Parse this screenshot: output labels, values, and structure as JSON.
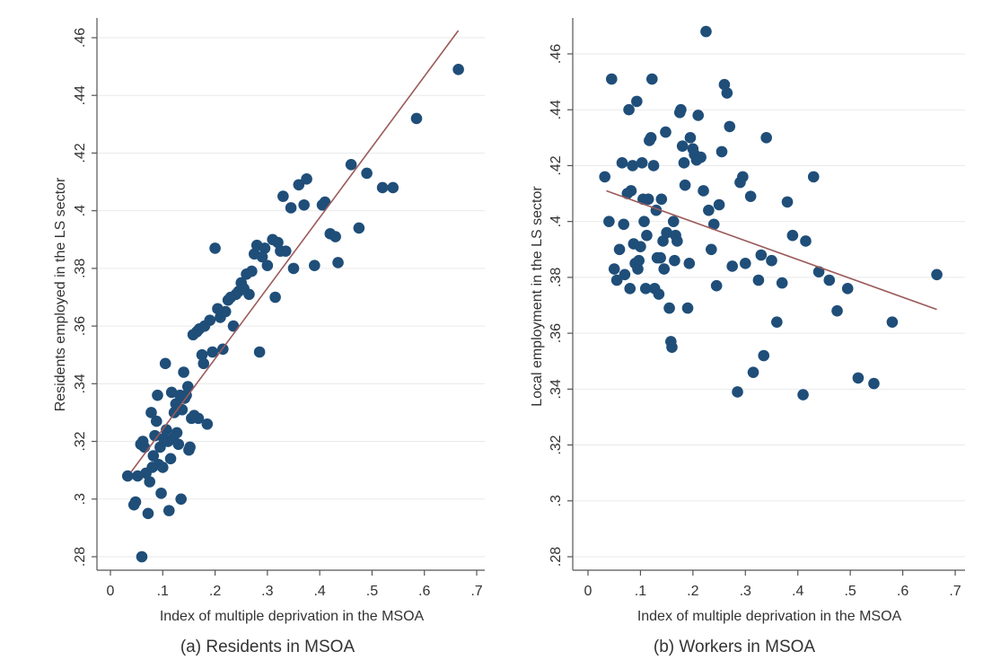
{
  "chart_data": [
    {
      "type": "scatter",
      "caption": "(a) Residents in MSOA",
      "xlabel": "Index of multiple deprivation in the MSOA",
      "ylabel": "Residents employed in the LS sector",
      "xlim": [
        0,
        0.7
      ],
      "ylim": [
        0.28,
        0.46
      ],
      "x_ticks": [
        "0",
        ".1",
        ".2",
        ".3",
        ".4",
        ".5",
        ".6",
        ".7"
      ],
      "y_ticks": [
        ".28",
        ".3",
        ".32",
        ".34",
        ".36",
        ".38",
        ".4",
        ".42",
        ".44",
        ".46"
      ],
      "grid": true,
      "marker_color": "#1f4e79",
      "fit_color": "#9b5a5a",
      "fit_line": {
        "x": [
          0.04,
          0.665
        ],
        "y": [
          0.3095,
          0.4625
        ]
      },
      "points": [
        [
          0.033,
          0.308
        ],
        [
          0.045,
          0.298
        ],
        [
          0.048,
          0.299
        ],
        [
          0.052,
          0.308
        ],
        [
          0.058,
          0.319
        ],
        [
          0.062,
          0.32
        ],
        [
          0.065,
          0.318
        ],
        [
          0.06,
          0.28
        ],
        [
          0.068,
          0.309
        ],
        [
          0.072,
          0.295
        ],
        [
          0.075,
          0.306
        ],
        [
          0.078,
          0.33
        ],
        [
          0.08,
          0.311
        ],
        [
          0.082,
          0.315
        ],
        [
          0.085,
          0.322
        ],
        [
          0.088,
          0.327
        ],
        [
          0.09,
          0.336
        ],
        [
          0.092,
          0.312
        ],
        [
          0.095,
          0.318
        ],
        [
          0.097,
          0.302
        ],
        [
          0.1,
          0.311
        ],
        [
          0.102,
          0.321
        ],
        [
          0.105,
          0.347
        ],
        [
          0.107,
          0.324
        ],
        [
          0.11,
          0.32
        ],
        [
          0.112,
          0.296
        ],
        [
          0.115,
          0.314
        ],
        [
          0.117,
          0.337
        ],
        [
          0.12,
          0.321
        ],
        [
          0.122,
          0.33
        ],
        [
          0.125,
          0.333
        ],
        [
          0.127,
          0.323
        ],
        [
          0.13,
          0.319
        ],
        [
          0.133,
          0.336
        ],
        [
          0.135,
          0.3
        ],
        [
          0.137,
          0.331
        ],
        [
          0.14,
          0.344
        ],
        [
          0.142,
          0.335
        ],
        [
          0.145,
          0.336
        ],
        [
          0.148,
          0.339
        ],
        [
          0.15,
          0.317
        ],
        [
          0.152,
          0.318
        ],
        [
          0.155,
          0.328
        ],
        [
          0.158,
          0.357
        ],
        [
          0.16,
          0.329
        ],
        [
          0.165,
          0.358
        ],
        [
          0.168,
          0.328
        ],
        [
          0.17,
          0.359
        ],
        [
          0.175,
          0.35
        ],
        [
          0.178,
          0.347
        ],
        [
          0.18,
          0.36
        ],
        [
          0.185,
          0.326
        ],
        [
          0.19,
          0.362
        ],
        [
          0.195,
          0.351
        ],
        [
          0.2,
          0.387
        ],
        [
          0.205,
          0.366
        ],
        [
          0.21,
          0.363
        ],
        [
          0.215,
          0.352
        ],
        [
          0.22,
          0.365
        ],
        [
          0.225,
          0.369
        ],
        [
          0.23,
          0.37
        ],
        [
          0.235,
          0.36
        ],
        [
          0.24,
          0.371
        ],
        [
          0.245,
          0.372
        ],
        [
          0.25,
          0.375
        ],
        [
          0.255,
          0.373
        ],
        [
          0.26,
          0.378
        ],
        [
          0.265,
          0.371
        ],
        [
          0.27,
          0.379
        ],
        [
          0.275,
          0.385
        ],
        [
          0.28,
          0.388
        ],
        [
          0.285,
          0.351
        ],
        [
          0.29,
          0.384
        ],
        [
          0.295,
          0.387
        ],
        [
          0.3,
          0.381
        ],
        [
          0.31,
          0.39
        ],
        [
          0.315,
          0.37
        ],
        [
          0.32,
          0.389
        ],
        [
          0.325,
          0.386
        ],
        [
          0.33,
          0.405
        ],
        [
          0.335,
          0.386
        ],
        [
          0.345,
          0.401
        ],
        [
          0.35,
          0.38
        ],
        [
          0.36,
          0.409
        ],
        [
          0.37,
          0.402
        ],
        [
          0.375,
          0.411
        ],
        [
          0.39,
          0.381
        ],
        [
          0.405,
          0.402
        ],
        [
          0.41,
          0.403
        ],
        [
          0.42,
          0.392
        ],
        [
          0.43,
          0.391
        ],
        [
          0.435,
          0.382
        ],
        [
          0.46,
          0.416
        ],
        [
          0.475,
          0.394
        ],
        [
          0.49,
          0.413
        ],
        [
          0.52,
          0.408
        ],
        [
          0.54,
          0.408
        ],
        [
          0.585,
          0.432
        ],
        [
          0.665,
          0.449
        ]
      ]
    },
    {
      "type": "scatter",
      "caption": "(b) Workers in MSOA",
      "xlabel": "Index of multiple deprivation in the MSOA",
      "ylabel": "Local employment in the LS sector",
      "xlim": [
        0,
        0.7
      ],
      "ylim": [
        0.28,
        0.46
      ],
      "x_ticks": [
        "0",
        ".1",
        ".2",
        ".3",
        ".4",
        ".5",
        ".6",
        ".7"
      ],
      "y_ticks": [
        ".28",
        ".3",
        ".32",
        ".34",
        ".36",
        ".38",
        ".4",
        ".42",
        ".44",
        ".46"
      ],
      "grid": true,
      "marker_color": "#1f4e79",
      "fit_color": "#9b5a5a",
      "fit_line": {
        "x": [
          0.035,
          0.665
        ],
        "y": [
          0.411,
          0.3685
        ]
      },
      "points": [
        [
          0.032,
          0.416
        ],
        [
          0.04,
          0.4
        ],
        [
          0.045,
          0.451
        ],
        [
          0.05,
          0.383
        ],
        [
          0.055,
          0.379
        ],
        [
          0.06,
          0.39
        ],
        [
          0.065,
          0.421
        ],
        [
          0.068,
          0.399
        ],
        [
          0.07,
          0.381
        ],
        [
          0.075,
          0.41
        ],
        [
          0.078,
          0.44
        ],
        [
          0.08,
          0.376
        ],
        [
          0.082,
          0.411
        ],
        [
          0.085,
          0.42
        ],
        [
          0.087,
          0.392
        ],
        [
          0.09,
          0.385
        ],
        [
          0.093,
          0.443
        ],
        [
          0.095,
          0.383
        ],
        [
          0.097,
          0.386
        ],
        [
          0.1,
          0.391
        ],
        [
          0.103,
          0.421
        ],
        [
          0.105,
          0.408
        ],
        [
          0.107,
          0.4
        ],
        [
          0.11,
          0.376
        ],
        [
          0.112,
          0.395
        ],
        [
          0.115,
          0.408
        ],
        [
          0.117,
          0.429
        ],
        [
          0.12,
          0.43
        ],
        [
          0.122,
          0.451
        ],
        [
          0.125,
          0.42
        ],
        [
          0.127,
          0.376
        ],
        [
          0.13,
          0.404
        ],
        [
          0.132,
          0.387
        ],
        [
          0.135,
          0.374
        ],
        [
          0.138,
          0.387
        ],
        [
          0.14,
          0.408
        ],
        [
          0.143,
          0.393
        ],
        [
          0.145,
          0.383
        ],
        [
          0.148,
          0.432
        ],
        [
          0.15,
          0.396
        ],
        [
          0.155,
          0.369
        ],
        [
          0.158,
          0.357
        ],
        [
          0.16,
          0.355
        ],
        [
          0.163,
          0.4
        ],
        [
          0.165,
          0.386
        ],
        [
          0.167,
          0.395
        ],
        [
          0.17,
          0.393
        ],
        [
          0.175,
          0.439
        ],
        [
          0.177,
          0.44
        ],
        [
          0.18,
          0.427
        ],
        [
          0.183,
          0.421
        ],
        [
          0.185,
          0.413
        ],
        [
          0.19,
          0.369
        ],
        [
          0.193,
          0.385
        ],
        [
          0.195,
          0.43
        ],
        [
          0.2,
          0.426
        ],
        [
          0.203,
          0.424
        ],
        [
          0.207,
          0.422
        ],
        [
          0.21,
          0.438
        ],
        [
          0.215,
          0.423
        ],
        [
          0.22,
          0.411
        ],
        [
          0.225,
          0.468
        ],
        [
          0.23,
          0.404
        ],
        [
          0.235,
          0.39
        ],
        [
          0.24,
          0.399
        ],
        [
          0.245,
          0.377
        ],
        [
          0.25,
          0.406
        ],
        [
          0.255,
          0.425
        ],
        [
          0.26,
          0.449
        ],
        [
          0.265,
          0.446
        ],
        [
          0.27,
          0.434
        ],
        [
          0.275,
          0.384
        ],
        [
          0.285,
          0.339
        ],
        [
          0.29,
          0.414
        ],
        [
          0.295,
          0.416
        ],
        [
          0.3,
          0.385
        ],
        [
          0.31,
          0.409
        ],
        [
          0.315,
          0.346
        ],
        [
          0.325,
          0.379
        ],
        [
          0.33,
          0.388
        ],
        [
          0.335,
          0.352
        ],
        [
          0.34,
          0.43
        ],
        [
          0.35,
          0.386
        ],
        [
          0.36,
          0.364
        ],
        [
          0.37,
          0.378
        ],
        [
          0.38,
          0.407
        ],
        [
          0.39,
          0.395
        ],
        [
          0.41,
          0.338
        ],
        [
          0.415,
          0.393
        ],
        [
          0.43,
          0.416
        ],
        [
          0.44,
          0.382
        ],
        [
          0.46,
          0.379
        ],
        [
          0.475,
          0.368
        ],
        [
          0.495,
          0.376
        ],
        [
          0.515,
          0.344
        ],
        [
          0.545,
          0.342
        ],
        [
          0.58,
          0.364
        ],
        [
          0.665,
          0.381
        ]
      ]
    }
  ]
}
